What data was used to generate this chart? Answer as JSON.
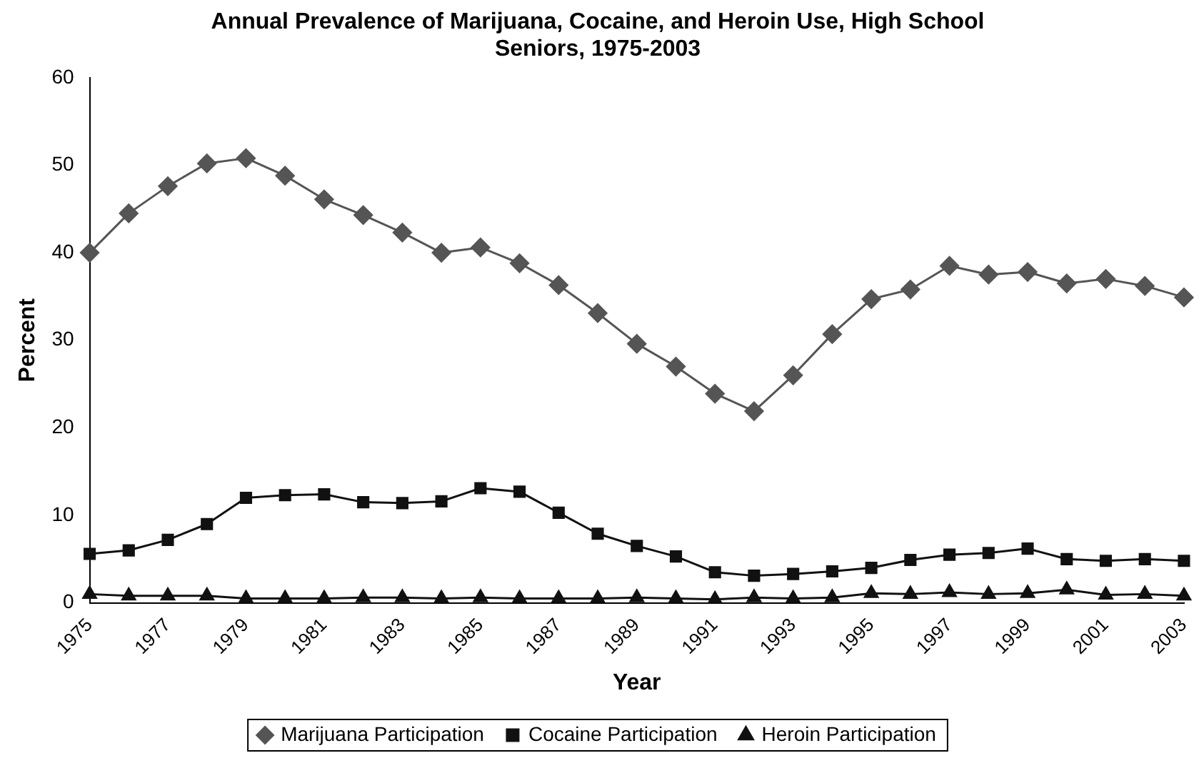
{
  "chart_data": {
    "type": "line",
    "title": "Annual Prevalence of Marijuana, Cocaine, and Heroin Use, High School Seniors, 1975-2003",
    "xlabel": "Year",
    "ylabel": "Percent",
    "categories": [
      "1975",
      null,
      "1977",
      null,
      "1979",
      null,
      "1981",
      null,
      "1983",
      null,
      "1985",
      null,
      "1987",
      null,
      "1989",
      null,
      "1991",
      null,
      "1993",
      null,
      "1995",
      null,
      "1997",
      null,
      "1999",
      null,
      "2001",
      null,
      "2003"
    ],
    "series": [
      {
        "name": "Marijuana Participation",
        "color": "#555555",
        "marker": "diamond",
        "values": [
          40.0,
          44.5,
          47.6,
          50.2,
          50.8,
          48.8,
          46.1,
          44.3,
          42.3,
          40.0,
          40.6,
          38.8,
          36.3,
          33.1,
          29.6,
          27.0,
          23.9,
          21.9,
          26.0,
          30.7,
          34.7,
          35.8,
          38.5,
          37.5,
          37.8,
          36.5,
          37.0,
          36.2,
          34.9
        ]
      },
      {
        "name": "Cocaine Participation",
        "color": "#111111",
        "marker": "square",
        "values": [
          5.6,
          6.0,
          7.2,
          9.0,
          12.0,
          12.3,
          12.4,
          11.5,
          11.4,
          11.6,
          13.1,
          12.7,
          10.3,
          7.9,
          6.5,
          5.3,
          3.5,
          3.1,
          3.3,
          3.6,
          4.0,
          4.9,
          5.5,
          5.7,
          6.2,
          5.0,
          4.8,
          5.0,
          4.8
        ]
      },
      {
        "name": "Heroin Participation",
        "color": "#111111",
        "marker": "triangle",
        "values": [
          1.0,
          0.8,
          0.8,
          0.8,
          0.5,
          0.5,
          0.5,
          0.6,
          0.6,
          0.5,
          0.6,
          0.5,
          0.5,
          0.5,
          0.6,
          0.5,
          0.4,
          0.6,
          0.5,
          0.6,
          1.1,
          1.0,
          1.2,
          1.0,
          1.1,
          1.5,
          0.9,
          1.0,
          0.8
        ]
      }
    ],
    "ylim": [
      0,
      60
    ],
    "yticks": [
      0,
      10,
      20,
      30,
      40,
      50,
      60
    ],
    "grid": false,
    "legend": "bottom",
    "line_style": "solid"
  }
}
